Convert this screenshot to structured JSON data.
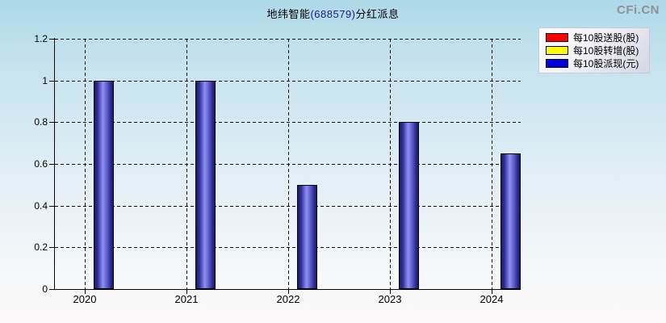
{
  "header": {
    "title_company": "地纬智能",
    "title_code": "(688579)",
    "title_suffix": "分红派息",
    "logo": "CFi.CN"
  },
  "legend": {
    "items": [
      {
        "label": "每10股送股(股)",
        "color": "#ff0000"
      },
      {
        "label": "每10股转增(股)",
        "color": "#ffff00"
      },
      {
        "label": "每10股派现(元)",
        "color": "#0000dd"
      }
    ]
  },
  "chart_data": {
    "type": "bar",
    "title": "地纬智能(688579)分红派息",
    "categories": [
      "2020",
      "2021",
      "2022",
      "2023",
      "2024"
    ],
    "series": [
      {
        "name": "每10股送股(股)",
        "color": "#ff0000",
        "values": [
          0,
          0,
          0,
          0,
          0
        ]
      },
      {
        "name": "每10股转增(股)",
        "color": "#ffff00",
        "values": [
          0,
          0,
          0,
          0,
          0
        ]
      },
      {
        "name": "每10股派现(元)",
        "color": "#0000dd",
        "values": [
          1.0,
          1.0,
          0.5,
          0.8,
          0.65
        ]
      }
    ],
    "xlabel": "",
    "ylabel": "",
    "ylim": [
      0,
      1.2
    ],
    "yticks": [
      0,
      0.2,
      0.4,
      0.6,
      0.8,
      1,
      1.2
    ],
    "ytick_labels": [
      "0",
      "0.2",
      "0.4",
      "0.6",
      "0.8",
      "1",
      "1.2"
    ],
    "grid": "dashed",
    "legend_position": "top-right"
  }
}
